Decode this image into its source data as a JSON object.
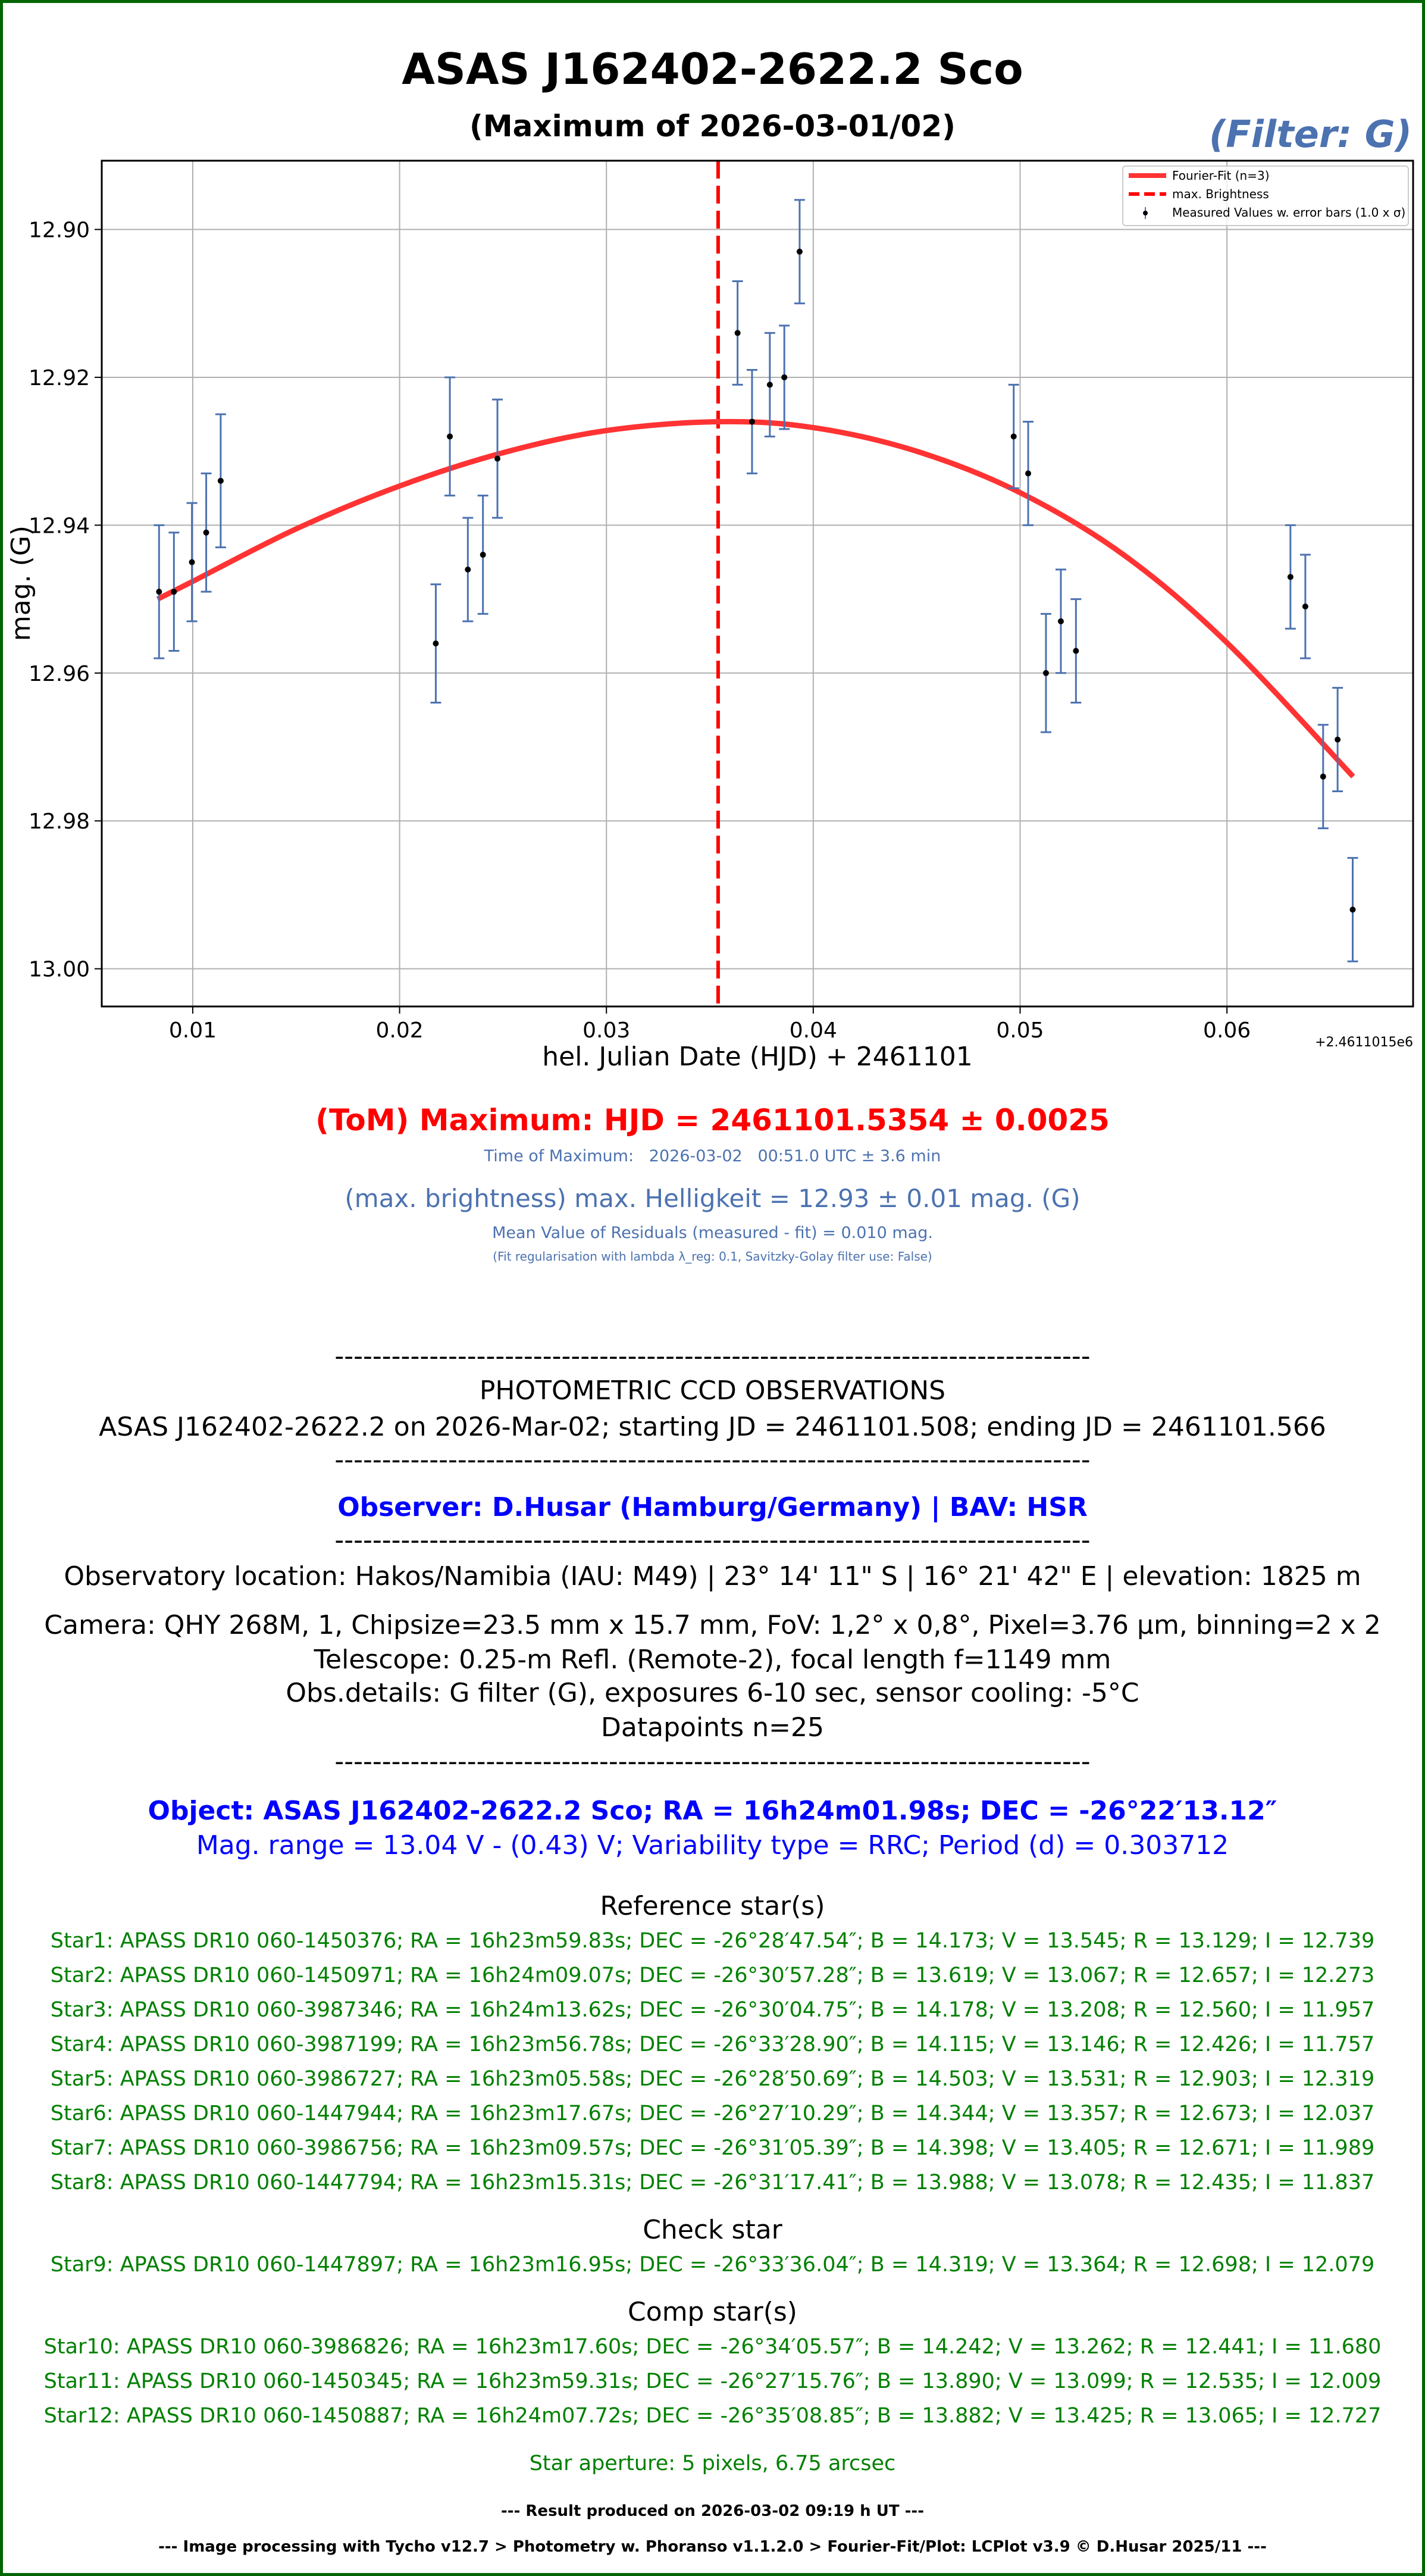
{
  "header": {
    "title": "ASAS J162402-2622.2 Sco",
    "subtitle": "(Maximum of 2026-03-01/02)",
    "filter": "(Filter: G)"
  },
  "colors": {
    "border": "#006400",
    "fit": "#ff3333",
    "max_line": "#ff0000",
    "errorbar": "#4c72b0",
    "point": "#000000",
    "accent_blue": "#4c72b0",
    "observer_blue": "#0000ff",
    "star_green": "#008000"
  },
  "chart_data": {
    "type": "scatter",
    "title": "ASAS J162402-2622.2 Sco",
    "xlabel": "hel. Julian Date (HJD) + 2461101",
    "ylabel": "mag. (G)",
    "x_offset_label": "+2.4611015e6",
    "xlim": [
      0.0056,
      0.069
    ],
    "ylim": [
      13.0051,
      12.8907
    ],
    "y_inverted": true,
    "grid": true,
    "x_ticks": [
      0.01,
      0.02,
      0.03,
      0.04,
      0.05,
      0.06
    ],
    "x_tick_labels": [
      "0.01",
      "0.02",
      "0.03",
      "0.04",
      "0.05",
      "0.06"
    ],
    "y_ticks": [
      12.9,
      12.92,
      12.94,
      12.96,
      12.98,
      13.0
    ],
    "y_tick_labels": [
      "12.90",
      "12.92",
      "12.94",
      "12.96",
      "12.98",
      "13.00"
    ],
    "legend": {
      "placement": "top-right",
      "entries": [
        "Fourier-Fit (n=3)",
        "max. Brightness",
        "Measured Values w. error bars (1.0 x σ)"
      ]
    },
    "max_brightness_x": 0.0354,
    "measured": [
      {
        "x": 0.00837,
        "y": 12.949,
        "err": 0.009
      },
      {
        "x": 0.00909,
        "y": 12.949,
        "err": 0.008
      },
      {
        "x": 0.00996,
        "y": 12.945,
        "err": 0.008
      },
      {
        "x": 0.01065,
        "y": 12.941,
        "err": 0.008
      },
      {
        "x": 0.01135,
        "y": 12.934,
        "err": 0.009
      },
      {
        "x": 0.02175,
        "y": 12.956,
        "err": 0.008
      },
      {
        "x": 0.02243,
        "y": 12.928,
        "err": 0.008
      },
      {
        "x": 0.0233,
        "y": 12.946,
        "err": 0.007
      },
      {
        "x": 0.02403,
        "y": 12.944,
        "err": 0.008
      },
      {
        "x": 0.02473,
        "y": 12.931,
        "err": 0.008
      },
      {
        "x": 0.03634,
        "y": 12.914,
        "err": 0.007
      },
      {
        "x": 0.03704,
        "y": 12.926,
        "err": 0.007
      },
      {
        "x": 0.0379,
        "y": 12.921,
        "err": 0.007
      },
      {
        "x": 0.0386,
        "y": 12.92,
        "err": 0.007
      },
      {
        "x": 0.03934,
        "y": 12.903,
        "err": 0.007
      },
      {
        "x": 0.04969,
        "y": 12.928,
        "err": 0.007
      },
      {
        "x": 0.05039,
        "y": 12.933,
        "err": 0.007
      },
      {
        "x": 0.05125,
        "y": 12.96,
        "err": 0.008
      },
      {
        "x": 0.05197,
        "y": 12.953,
        "err": 0.007
      },
      {
        "x": 0.0527,
        "y": 12.957,
        "err": 0.007
      },
      {
        "x": 0.06307,
        "y": 12.947,
        "err": 0.007
      },
      {
        "x": 0.06379,
        "y": 12.951,
        "err": 0.007
      },
      {
        "x": 0.06465,
        "y": 12.974,
        "err": 0.007
      },
      {
        "x": 0.06535,
        "y": 12.969,
        "err": 0.007
      },
      {
        "x": 0.06608,
        "y": 12.992,
        "err": 0.007
      }
    ],
    "fit": [
      {
        "x": 0.0083,
        "y": 12.95
      },
      {
        "x": 0.01,
        "y": 12.9476
      },
      {
        "x": 0.015,
        "y": 12.9405
      },
      {
        "x": 0.02,
        "y": 12.9347
      },
      {
        "x": 0.025,
        "y": 12.9302
      },
      {
        "x": 0.03,
        "y": 12.9272
      },
      {
        "x": 0.0354,
        "y": 12.926
      },
      {
        "x": 0.04,
        "y": 12.9268
      },
      {
        "x": 0.045,
        "y": 12.93
      },
      {
        "x": 0.05,
        "y": 12.9356
      },
      {
        "x": 0.055,
        "y": 12.944
      },
      {
        "x": 0.06,
        "y": 12.9559
      },
      {
        "x": 0.0661,
        "y": 12.974
      }
    ]
  },
  "results": {
    "tom": "(ToM) Maximum: HJD = 2461101.5354 ± 0.0025",
    "time_of_max": "Time of Maximum:   2026-03-02   00:51.0 UTC ± 3.6 min",
    "max_brightness": "(max. brightness) max. Helligkeit = 12.93 ± 0.01 mag. (G)",
    "residuals": "Mean Value of Residuals (measured - fit) = 0.010 mag.",
    "fit_reg": "(Fit regularisation with lambda λ_reg: 0.1, Savitzky-Golay filter use: False)"
  },
  "report": {
    "divider": "--------------------------------------------------------------------------------",
    "heading": "PHOTOMETRIC CCD OBSERVATIONS",
    "object_line": "ASAS J162402-2622.2 on 2026-Mar-02; starting JD = 2461101.508; ending JD = 2461101.566",
    "observer": "Observer: D.Husar (Hamburg/Germany) | BAV: HSR",
    "location": "Observatory location: Hakos/Namibia (IAU: M49) | 23° 14' 11\" S | 16° 21' 42\" E | elevation: 1825 m",
    "camera": "Camera: QHY 268M, 1, Chipsize=23.5 mm x 15.7 mm, FoV: 1,2° x 0,8°, Pixel=3.76 µm, binning=2 x 2",
    "telescope": "Telescope: 0.25-m Refl. (Remote-2), focal length f=1149 mm",
    "obs_details": "Obs.details: G filter (G), exposures 6-10 sec, sensor cooling: -5°C",
    "datapoints": "Datapoints n=25",
    "object": "Object: ASAS J162402-2622.2 Sco; RA = 16h24m01.98s; DEC = -26°22′13.12″",
    "mag_range": "Mag. range = 13.04 V - (0.43) V; Variability type = RRC; Period (d) = 0.303712",
    "ref_heading": "Reference star(s)",
    "ref_stars": [
      "Star1: APASS DR10 060-1450376; RA = 16h23m59.83s; DEC = -26°28′47.54″; B = 14.173; V = 13.545; R = 13.129; I = 12.739",
      "Star2: APASS DR10 060-1450971; RA = 16h24m09.07s; DEC = -26°30′57.28″; B = 13.619; V = 13.067; R = 12.657; I = 12.273",
      "Star3: APASS DR10 060-3987346; RA = 16h24m13.62s; DEC = -26°30′04.75″; B = 14.178; V = 13.208; R = 12.560; I = 11.957",
      "Star4: APASS DR10 060-3987199; RA = 16h23m56.78s; DEC = -26°33′28.90″; B = 14.115; V = 13.146; R = 12.426; I = 11.757",
      "Star5: APASS DR10 060-3986727; RA = 16h23m05.58s; DEC = -26°28′50.69″; B = 14.503; V = 13.531; R = 12.903; I = 12.319",
      "Star6: APASS DR10 060-1447944; RA = 16h23m17.67s; DEC = -26°27′10.29″; B = 14.344; V = 13.357; R = 12.673; I = 12.037",
      "Star7: APASS DR10 060-3986756; RA = 16h23m09.57s; DEC = -26°31′05.39″; B = 14.398; V = 13.405; R = 12.671; I = 11.989",
      "Star8: APASS DR10 060-1447794; RA = 16h23m15.31s; DEC = -26°31′17.41″; B = 13.988; V = 13.078; R = 12.435; I = 11.837"
    ],
    "check_heading": "Check star",
    "check_stars": [
      "Star9: APASS DR10 060-1447897; RA = 16h23m16.95s; DEC = -26°33′36.04″; B = 14.319; V = 13.364; R = 12.698; I = 12.079"
    ],
    "comp_heading": "Comp star(s)",
    "comp_stars": [
      "Star10: APASS DR10 060-3986826; RA = 16h23m17.60s; DEC = -26°34′05.57″; B = 14.242; V = 13.262; R = 12.441; I = 11.680",
      "Star11: APASS DR10 060-1450345; RA = 16h23m59.31s; DEC = -26°27′15.76″; B = 13.890; V = 13.099; R = 12.535; I = 12.009",
      "Star12: APASS DR10 060-1450887; RA = 16h24m07.72s; DEC = -26°35′08.85″; B = 13.882; V = 13.425; R = 13.065; I = 12.727"
    ],
    "aperture": "Star aperture: 5 pixels, 6.75 arcsec",
    "result_time": "--- Result produced on 2026-03-02 09:19 h UT ---",
    "processing": "--- Image processing with Tycho v12.7 > Photometry w. Phoranso v1.1.2.0 > Fourier-Fit/Plot: LCPlot v3.9 © D.Husar 2025/11 ---"
  }
}
